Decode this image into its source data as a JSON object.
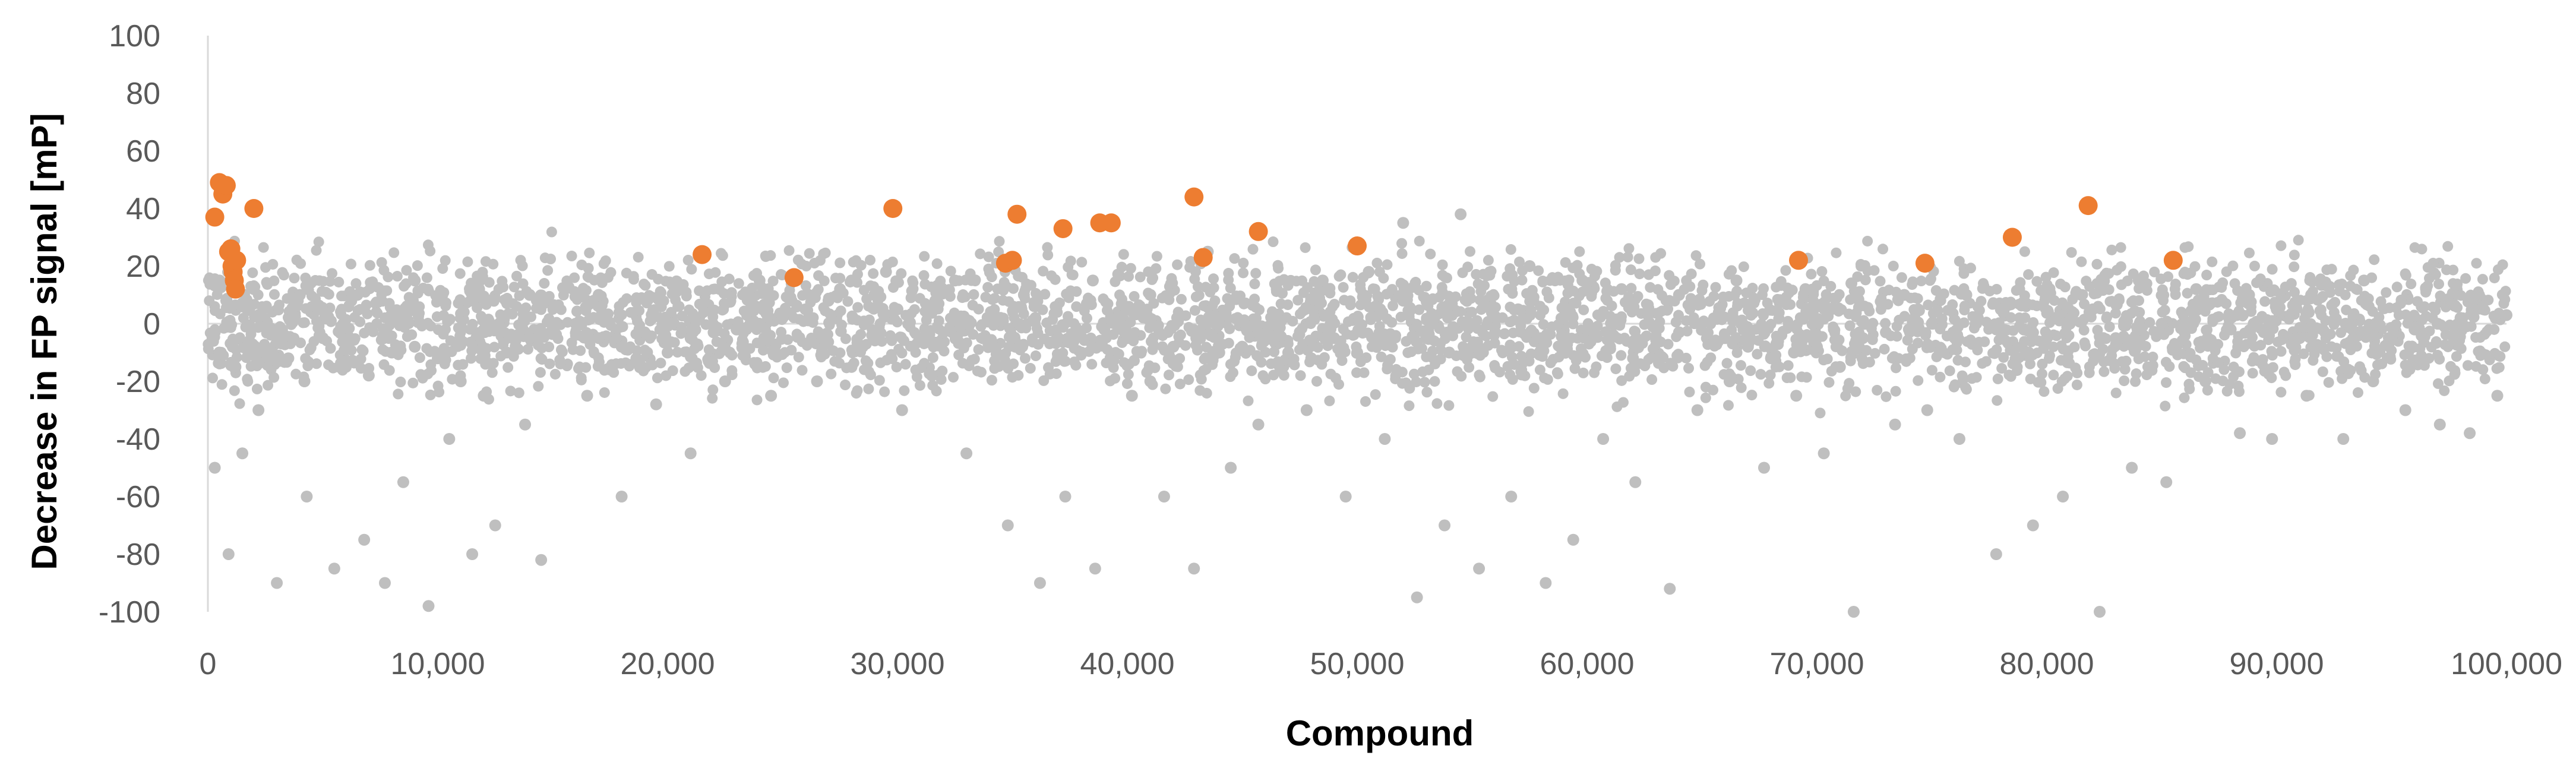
{
  "chart_data": {
    "type": "scatter",
    "title": "",
    "xlabel": "Compound",
    "ylabel": "Decrease in FP signal [mP]",
    "xlim": [
      0,
      100000
    ],
    "ylim": [
      -100,
      100
    ],
    "x_ticks": [
      0,
      10000,
      20000,
      30000,
      40000,
      50000,
      60000,
      70000,
      80000,
      90000,
      100000
    ],
    "x_tick_labels": [
      "0",
      "10,000",
      "20,000",
      "30,000",
      "40,000",
      "50,000",
      "60,000",
      "70,000",
      "80,000",
      "90,000",
      "100,000"
    ],
    "y_ticks": [
      -100,
      -80,
      -60,
      -40,
      -20,
      0,
      20,
      40,
      60,
      80,
      100
    ],
    "y_tick_labels": [
      "-100",
      "-80",
      "-60",
      "-40",
      "-20",
      "0",
      "20",
      "40",
      "60",
      "80",
      "100"
    ],
    "grid": false,
    "legend": "none",
    "colors": {
      "population": "#BFBFBF",
      "hits": "#ED7D31",
      "axis": "#D9D9D9"
    },
    "series": [
      {
        "role": "population",
        "x": [
          200,
          500,
          800,
          1200,
          1800,
          2500,
          3500,
          4200,
          5000,
          6000,
          7000,
          8000,
          9000,
          10000,
          11000,
          12000,
          13000,
          14000,
          15000,
          16000,
          17000,
          18000,
          19000,
          20000,
          21000,
          22000,
          23000,
          24000,
          25000,
          26000,
          27000,
          28000,
          29000,
          30000,
          31000,
          32000,
          33000,
          34000,
          35000,
          36000,
          37000,
          38000,
          39000,
          40000,
          41000,
          42000,
          43000,
          44000,
          45000,
          46000,
          47000,
          48000,
          49000,
          50000,
          51000,
          52000,
          53000,
          54000,
          55000,
          56000,
          57000,
          58000,
          59000,
          60000,
          61000,
          62000,
          63000,
          64000,
          65000,
          66000,
          67000,
          68000,
          69000,
          70000,
          71000,
          72000,
          73000,
          74000,
          75000,
          76000,
          77000,
          78000,
          79000,
          80000,
          81000,
          82000,
          83000,
          84000,
          85000,
          86000,
          87000,
          88000,
          89000,
          90000,
          91000,
          92000,
          93000,
          94000,
          95000,
          96000,
          97000,
          98000,
          99000,
          100000,
          300,
          900,
          1500,
          2200,
          3000,
          4300,
          5500,
          6800,
          7700,
          8500,
          9600,
          10500,
          11500,
          12500,
          13800,
          14500,
          16500,
          18000,
          19500,
          21000,
          22500,
          24500,
          26500,
          28000,
          30200,
          31500,
          33000,
          34800,
          36200,
          37300,
          38600,
          40200,
          41600,
          42900,
          44500,
          45700,
          47800,
          49500,
          51200,
          52600,
          53800,
          55300,
          56700,
          58200,
          59400,
          60700,
          62100,
          63600,
          64800,
          66200,
          67700,
          69100,
          70300,
          71600,
          73400,
          74800,
          76200,
          77800,
          79400,
          80700,
          82300,
          83700,
          85200,
          86900,
          88400,
          89800,
          91300,
          92900,
          94200,
          95600,
          97100,
          98400,
          99600,
          500,
          1100,
          2000,
          4000,
          6500,
          9000,
          11800,
          14000,
          17000,
          20500,
          24000,
          27500,
          29500,
          32500,
          35500,
          38500,
          41000,
          43500,
          46500,
          48500,
          50500,
          52000,
          54500,
          57500,
          59800,
          61500,
          64000,
          66500,
          69500,
          71500,
          73800,
          76500,
          78800,
          81500,
          84000,
          86500,
          88800,
          91500,
          93800,
          96500,
          98800
        ],
        "y": [
          -5,
          -10,
          8,
          -15,
          5,
          -8,
          -12,
          -20,
          -5,
          -15,
          -18,
          -10,
          -8,
          -12,
          -20,
          -25,
          -10,
          -5,
          -2,
          0,
          -5,
          -8,
          -3,
          -10,
          -5,
          -3,
          -2,
          0,
          2,
          5,
          8,
          15,
          10,
          5,
          -5,
          -3,
          0,
          -8,
          -5,
          2,
          -5,
          -10,
          -2,
          -5,
          -20,
          -8,
          -5,
          -10,
          -8,
          -5,
          -10,
          -12,
          -5,
          -10,
          5,
          8,
          -5,
          -10,
          -8,
          -3,
          5,
          -5,
          -10,
          -2,
          -8,
          -12,
          -5,
          -3,
          0,
          -5,
          -8,
          -12,
          -10,
          -8,
          -15,
          -5,
          -3,
          -2,
          0,
          -5,
          2,
          5,
          -2,
          -5,
          0,
          5,
          -5,
          -2,
          0,
          -3,
          -5,
          -2,
          0,
          5,
          -5,
          -2,
          0,
          -3,
          -5,
          -2,
          0,
          2,
          5,
          3,
          -50,
          -80,
          -45,
          -30,
          -90,
          -60,
          -85,
          -75,
          -90,
          -55,
          -98,
          -40,
          -80,
          -70,
          -35,
          -82,
          -25,
          -60,
          -28,
          -45,
          -20,
          -25,
          -20,
          -15,
          -30,
          -18,
          -45,
          -70,
          -90,
          -60,
          -85,
          -25,
          -60,
          -85,
          -50,
          -35,
          -30,
          -60,
          -40,
          -95,
          -70,
          -85,
          -60,
          -90,
          -75,
          -40,
          -55,
          -92,
          -30,
          -20,
          -50,
          -25,
          -45,
          -100,
          -35,
          -30,
          -40,
          -80,
          -70,
          -60,
          -100,
          -50,
          -55,
          -20,
          -38,
          -40,
          -25,
          -40,
          -20,
          -30,
          -35,
          -38,
          -25,
          15,
          20,
          12,
          10,
          10,
          15,
          12,
          10,
          10,
          12,
          15,
          12,
          18,
          15,
          10,
          15,
          10,
          25,
          12,
          15,
          18,
          35,
          38,
          20,
          15,
          12,
          10,
          15,
          12,
          14,
          10,
          10,
          12,
          10,
          15,
          12,
          10,
          10,
          15,
          12,
          10
        ]
      },
      {
        "role": "hits",
        "x": [
          300,
          500,
          650,
          800,
          900,
          1000,
          1050,
          1100,
          1150,
          1200,
          1250,
          2000,
          21500,
          25500,
          29800,
          34700,
          35000,
          35200,
          37200,
          38800,
          39300,
          42900,
          43300,
          45700,
          50000,
          69200,
          74700,
          78500,
          81800,
          85500
        ],
        "y": [
          37,
          49,
          45,
          48,
          25,
          26,
          20,
          18,
          15,
          12,
          22,
          40,
          24,
          16,
          40,
          21,
          22,
          38,
          33,
          35,
          35,
          44,
          23,
          32,
          27,
          22,
          21,
          30,
          41,
          22
        ]
      }
    ]
  }
}
